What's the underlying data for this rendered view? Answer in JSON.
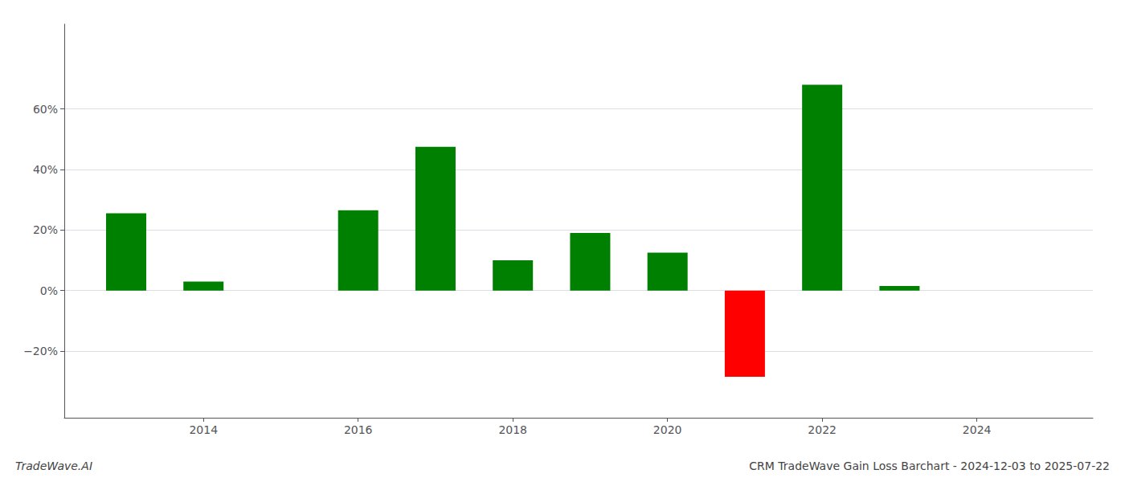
{
  "chart_data": {
    "type": "bar",
    "title": "CRM TradeWave Gain Loss Barchart - 2024-12-03 to 2025-07-22",
    "annotations": [
      "TradeWave.AI"
    ],
    "x": [
      2013,
      2014,
      2016,
      2017,
      2018,
      2019,
      2020,
      2021,
      2022,
      2023
    ],
    "values": [
      25.5,
      3.0,
      26.5,
      47.5,
      10.0,
      19.0,
      12.5,
      -28.5,
      68.0,
      1.5
    ],
    "colors": [
      "#008000",
      "#008000",
      "#008000",
      "#008000",
      "#008000",
      "#008000",
      "#008000",
      "#ff0000",
      "#008000",
      "#008000"
    ],
    "xlim": [
      2012.2,
      2025.5
    ],
    "xticks": [
      2014,
      2016,
      2018,
      2020,
      2022,
      2024
    ],
    "ylim": [
      -42,
      88
    ],
    "yticks": [
      {
        "value": -20,
        "label": "−20%"
      },
      {
        "value": 0,
        "label": "0%"
      },
      {
        "value": 20,
        "label": "20%"
      },
      {
        "value": 40,
        "label": "40%"
      },
      {
        "value": 60,
        "label": "60%"
      }
    ],
    "grid": true
  }
}
